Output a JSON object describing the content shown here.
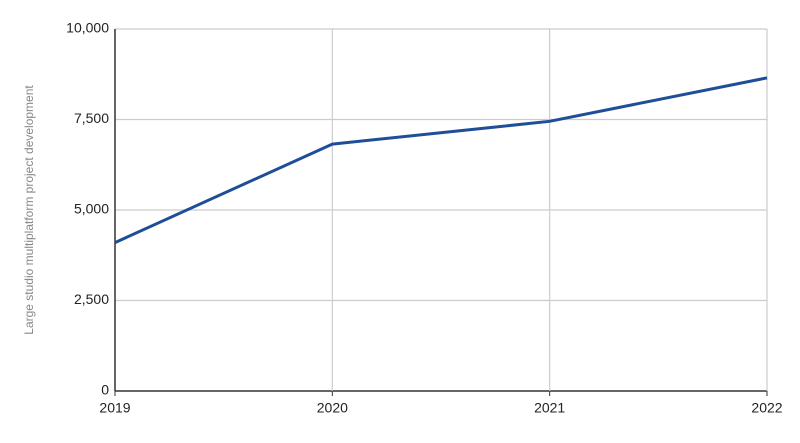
{
  "chart_data": {
    "type": "line",
    "y_label": "Large studio multiplatform project development",
    "x": [
      2019,
      2020,
      2021,
      2022
    ],
    "values": [
      4100,
      6820,
      7450,
      8650
    ],
    "color": "#1f4e99",
    "xlim": [
      2019,
      2022
    ],
    "xticks": [
      2019,
      2020,
      2021,
      2022
    ],
    "ylim": [
      0,
      10000
    ],
    "yticks": [
      0,
      {
        "value": 2500,
        "label": "2,500"
      },
      {
        "value": 5000,
        "label": "5,000"
      },
      {
        "value": 7500,
        "label": "7,500"
      },
      {
        "value": 10000,
        "label": "10,000"
      }
    ],
    "grid": true
  }
}
